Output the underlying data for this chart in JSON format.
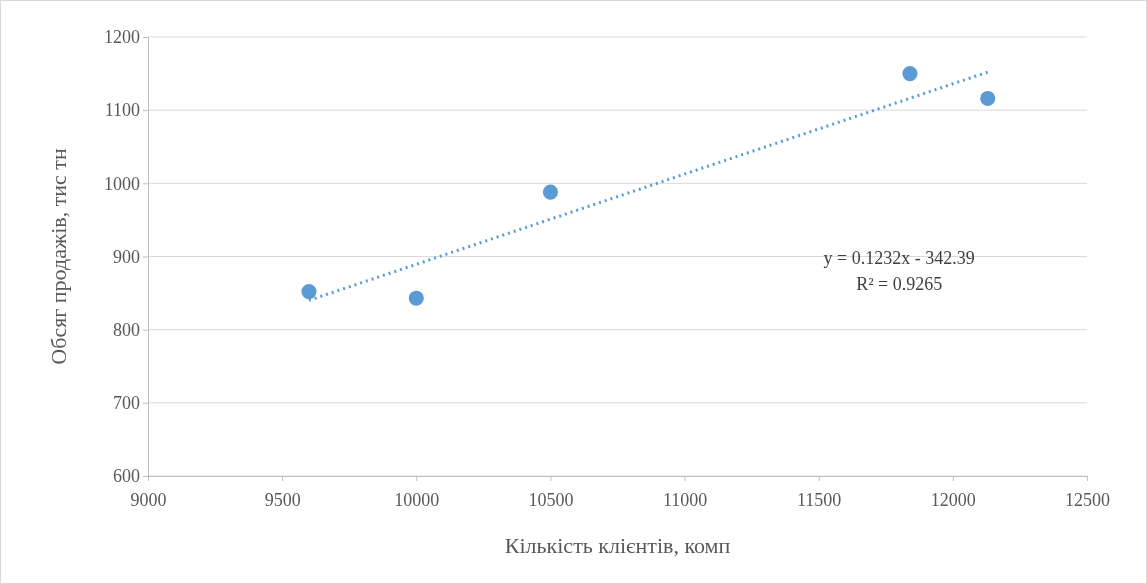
{
  "chart_data": {
    "type": "scatter",
    "xlabel": "Кількість клієнтів, комп",
    "ylabel": "Обсяг продажів, тис тн",
    "xlim": [
      9000,
      12500
    ],
    "xticks": [
      9000,
      9500,
      10000,
      10500,
      11000,
      11500,
      12000,
      12500
    ],
    "ylim": [
      600,
      1200
    ],
    "yticks": [
      600,
      700,
      800,
      900,
      1000,
      1100,
      1200
    ],
    "grid": "y",
    "series": [
      {
        "color": "#5b9bd5",
        "marker": "circle",
        "x": [
          9600,
          10000,
          10500,
          11840,
          12130
        ],
        "values": [
          852,
          843,
          988,
          1150,
          1116
        ]
      },
      {
        "type": "line",
        "color": "#5b9bd5",
        "marker": "none",
        "line_style": "dotted",
        "x": [
          9600,
          12130
        ],
        "values": [
          840,
          1152
        ]
      }
    ],
    "annotations": [
      "y = 0.1232x - 342.39",
      "R² = 0.9265"
    ]
  }
}
